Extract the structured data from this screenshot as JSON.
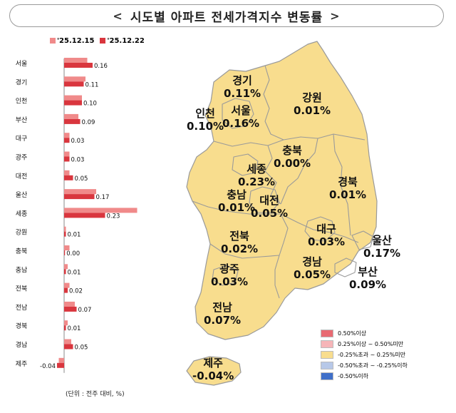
{
  "title": "시도별 아파트 전세가격지수 변동률",
  "title_left_glyph": "<",
  "title_right_glyph": ">",
  "legend": [
    {
      "label": "'25.12.15",
      "color": "#f08a8a"
    },
    {
      "label": "'25.12.22",
      "color": "#d9363e"
    }
  ],
  "unit_note": "(단위 : 전주 대비, %)",
  "chart_data": {
    "type": "bar",
    "orientation": "horizontal",
    "categories": [
      "서울",
      "경기",
      "인천",
      "부산",
      "대구",
      "광주",
      "대전",
      "울산",
      "세종",
      "강원",
      "충북",
      "충남",
      "전북",
      "전남",
      "경북",
      "경남",
      "제주"
    ],
    "series": [
      {
        "name": "'25.12.15",
        "values": [
          0.13,
          0.12,
          0.1,
          0.08,
          0.03,
          0.03,
          0.03,
          0.18,
          0.41,
          0.01,
          0.03,
          0.02,
          0.03,
          0.06,
          0.02,
          0.04,
          -0.03
        ]
      },
      {
        "name": "'25.12.22",
        "values": [
          0.16,
          0.11,
          0.1,
          0.09,
          0.03,
          0.03,
          0.05,
          0.17,
          0.23,
          0.01,
          0.0,
          0.01,
          0.02,
          0.07,
          0.01,
          0.05,
          -0.04
        ]
      }
    ],
    "labeled_values": [
      "0.16",
      "0.11",
      "0.10",
      "0.09",
      "0.03",
      "0.03",
      "0.05",
      "0.17",
      "0.23",
      "0.01",
      "0.00",
      "0.01",
      "0.02",
      "0.07",
      "0.01",
      "0.05",
      "-0.04"
    ]
  },
  "map": {
    "regions": [
      {
        "name": "경기",
        "value": "0.11%"
      },
      {
        "name": "강원",
        "value": "0.01%"
      },
      {
        "name": "인천",
        "value": "0.10%"
      },
      {
        "name": "서울",
        "value": "0.16%"
      },
      {
        "name": "충북",
        "value": "0.00%"
      },
      {
        "name": "세종",
        "value": "0.23%"
      },
      {
        "name": "충남",
        "value": "0.01%"
      },
      {
        "name": "대전",
        "value": "0.05%"
      },
      {
        "name": "경북",
        "value": "0.01%"
      },
      {
        "name": "전북",
        "value": "0.02%"
      },
      {
        "name": "대구",
        "value": "0.03%"
      },
      {
        "name": "울산",
        "value": "0.17%"
      },
      {
        "name": "광주",
        "value": "0.03%"
      },
      {
        "name": "경남",
        "value": "0.05%"
      },
      {
        "name": "부산",
        "value": "0.09%"
      },
      {
        "name": "전남",
        "value": "0.07%"
      },
      {
        "name": "제주",
        "value": "-0.04%"
      }
    ],
    "fill_color": "#f8dd8e",
    "border_color": "#9a9a9a",
    "legend": [
      {
        "label": "0.50%이상",
        "color": "#e86a72"
      },
      {
        "label": "0.25%이상 ~ 0.50%미만",
        "color": "#f6b5b8"
      },
      {
        "label": "-0.25%초과 ~ 0.25%미만",
        "color": "#f8dd8e"
      },
      {
        "label": "-0.50%초과 ~ -0.25%이하",
        "color": "#b7c8e8"
      },
      {
        "label": "-0.50%이하",
        "color": "#3f6fc9"
      }
    ]
  }
}
